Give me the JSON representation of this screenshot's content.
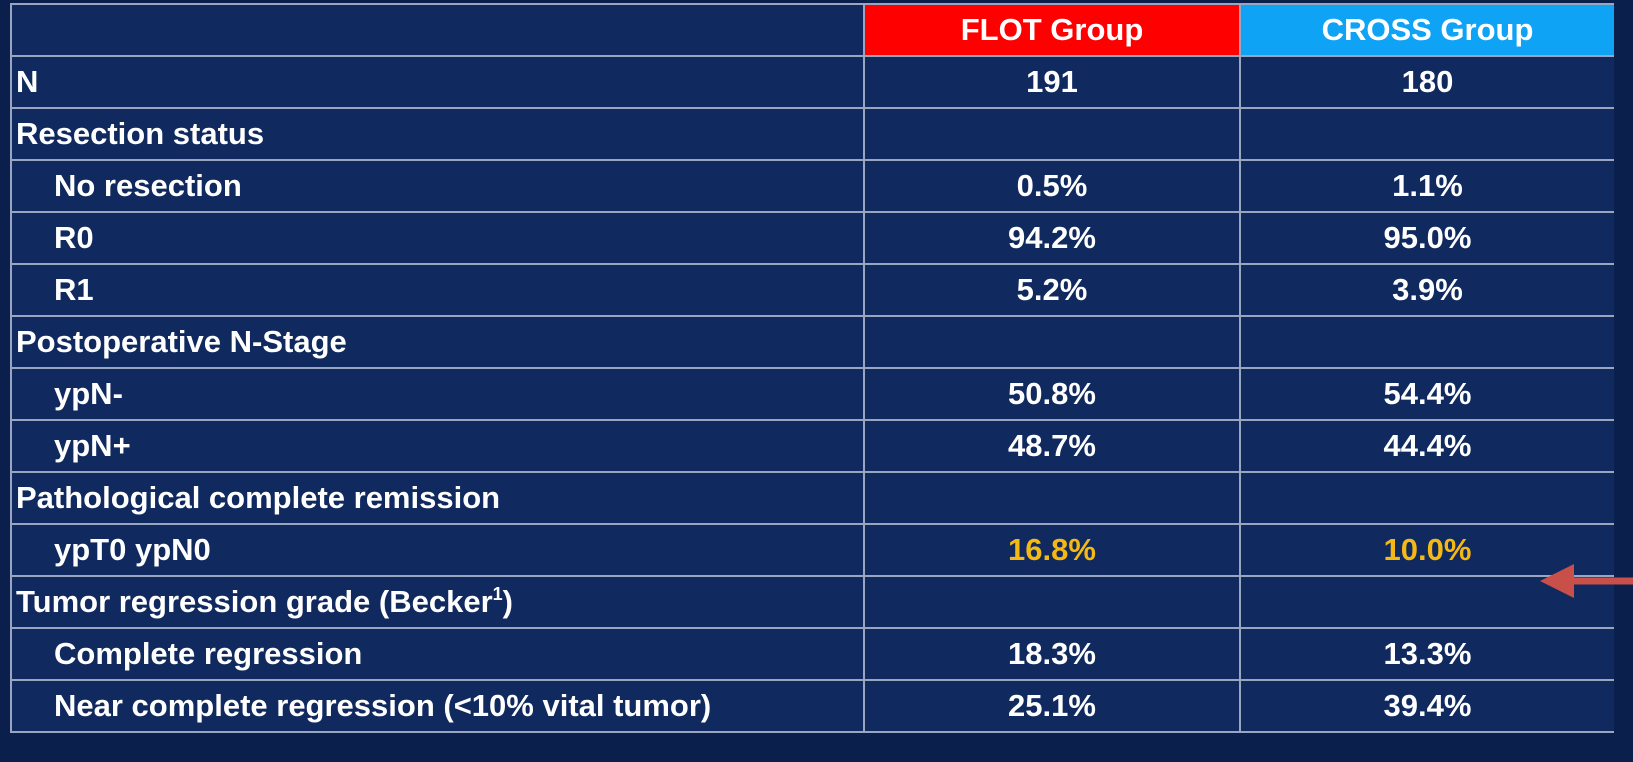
{
  "table": {
    "columns": [
      "FLOT Group",
      "CROSS Group"
    ],
    "rows": [
      {
        "label": "N",
        "values": [
          "191",
          "180"
        ]
      },
      {
        "label": "Resection status"
      },
      {
        "label": "No resection",
        "indent": true,
        "values": [
          "0.5%",
          "1.1%"
        ]
      },
      {
        "label": "R0",
        "indent": true,
        "values": [
          "94.2%",
          "95.0%"
        ]
      },
      {
        "label": "R1",
        "indent": true,
        "values": [
          "5.2%",
          "3.9%"
        ]
      },
      {
        "label": "Postoperative N-Stage"
      },
      {
        "label": "ypN-",
        "indent": true,
        "values": [
          "50.8%",
          "54.4%"
        ]
      },
      {
        "label": "ypN+",
        "indent": true,
        "values": [
          "48.7%",
          "44.4%"
        ]
      },
      {
        "label": "Pathological complete remission"
      },
      {
        "label": "ypT0 ypN0",
        "indent": true,
        "values": [
          "16.8%",
          "10.0%"
        ],
        "highlight_color": "#f5b914"
      },
      {
        "label": "Tumor regression grade (Becker",
        "sup": "1",
        "label_end": ")"
      },
      {
        "label": "Complete regression",
        "indent": true,
        "values": [
          "18.3%",
          "13.3%"
        ]
      },
      {
        "label": "Near complete regression (<10% vital tumor)",
        "indent": true,
        "values": [
          "25.1%",
          "39.4%"
        ]
      }
    ]
  }
}
